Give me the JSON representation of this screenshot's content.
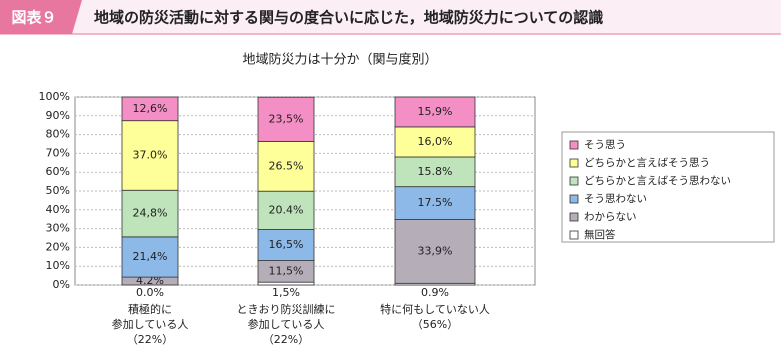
{
  "header": {
    "label": "図表９",
    "title": "地域の防災活動に対する関与の度合いに応じた，地域防災力についての認識"
  },
  "chart_data": {
    "type": "stacked_bar",
    "title": "地域防災力は十分か（関与度別）",
    "categories": [
      [
        "積極的に",
        "参加している人",
        "（22%）"
      ],
      [
        "ときおり防災訓練に",
        "参加している人",
        "（22%）"
      ],
      [
        "特に何もしていない人",
        "（56%）"
      ]
    ],
    "series": [
      {
        "name": "無回答",
        "color": "#ffffff",
        "values": [
          0.0,
          1.5,
          0.9
        ],
        "value_labels": [
          "0.0%",
          "1,5%",
          "0.9%"
        ]
      },
      {
        "name": "わからない",
        "color": "#b5aeb8",
        "values": [
          4.2,
          11.5,
          33.9
        ],
        "value_labels": [
          "4.2%",
          "11,5%",
          "33,9%"
        ]
      },
      {
        "name": "そう思わない",
        "color": "#8db9e8",
        "values": [
          21.4,
          16.5,
          17.5
        ],
        "value_labels": [
          "21,4%",
          "16,5%",
          "17.5%"
        ]
      },
      {
        "name": "どちらかと言えばそう思わない",
        "color": "#bfe3bb",
        "values": [
          24.8,
          20.4,
          15.8
        ],
        "value_labels": [
          "24,8%",
          "20.4%",
          "15.8%"
        ]
      },
      {
        "name": "どちらかと言えばそう思う",
        "color": "#ffff99",
        "values": [
          37.0,
          26.5,
          16.0
        ],
        "value_labels": [
          "37.0%",
          "26.5%",
          "16,0%"
        ]
      },
      {
        "name": "そう思う",
        "color": "#f38fc4",
        "values": [
          12.6,
          23.5,
          15.9
        ],
        "value_labels": [
          "12,6%",
          "23,5%",
          "15,9%"
        ]
      }
    ],
    "ylim": [
      0,
      100
    ],
    "yticks": [
      {
        "value": 0,
        "label": "0%"
      },
      {
        "value": 10,
        "label": "10%"
      },
      {
        "value": 20,
        "label": "20%"
      },
      {
        "value": 30,
        "label": "30%"
      },
      {
        "value": 40,
        "label": "40%"
      },
      {
        "value": 50,
        "label": "50%"
      },
      {
        "value": 60,
        "label": "60%"
      },
      {
        "value": 70,
        "label": "70%"
      },
      {
        "value": 80,
        "label": "80%"
      },
      {
        "value": 90,
        "label": "90%"
      },
      {
        "value": 100,
        "label": "100%"
      }
    ],
    "grid": true,
    "legend": "right"
  }
}
